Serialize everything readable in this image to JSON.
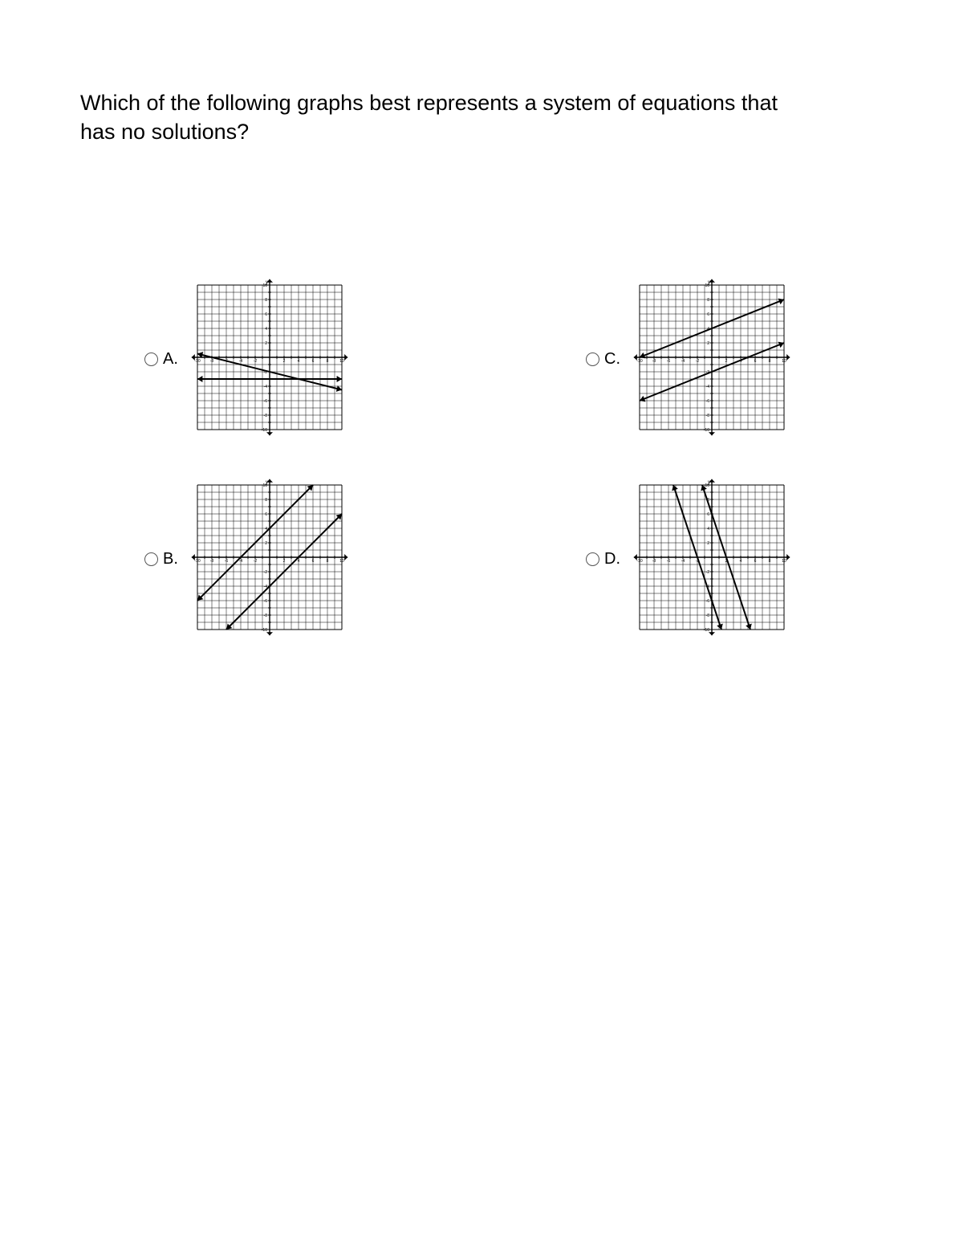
{
  "question_text": "Which of the following graphs best represents a system of equations that has no solutions?",
  "labels": {
    "a": "A.",
    "b": "B.",
    "c": "C.",
    "d": "D."
  },
  "choice_keys": [
    "a",
    "c",
    "b",
    "d"
  ],
  "graph": {
    "size": 180,
    "range": 10,
    "tick_step": 1,
    "axis_tick_labels": [
      -10,
      -8,
      -6,
      -4,
      -2,
      2,
      4,
      6,
      8,
      10
    ],
    "axis_label_fontsize": 5,
    "grid_color": "#000000",
    "grid_stroke": 0.5,
    "axis_color": "#000000",
    "axis_stroke": 1.4,
    "line_color": "#000000",
    "line_stroke": 2,
    "arrow_size": 4,
    "background_color": "#ffffff"
  },
  "charts": {
    "a": {
      "type": "line_pair",
      "lines": [
        {
          "slope": 0,
          "intercept": -3
        },
        {
          "slope": -0.25,
          "intercept": -2
        }
      ]
    },
    "b": {
      "type": "line_pair",
      "lines": [
        {
          "slope": 1,
          "intercept": 4
        },
        {
          "slope": 1,
          "intercept": -4
        }
      ]
    },
    "c": {
      "type": "line_pair",
      "lines": [
        {
          "slope": 0.4,
          "intercept": 4
        },
        {
          "slope": 0.4,
          "intercept": -2
        }
      ]
    },
    "d": {
      "type": "line_pair",
      "lines": [
        {
          "slope": -3,
          "intercept": -6
        },
        {
          "slope": -3,
          "intercept": 6
        }
      ]
    }
  }
}
